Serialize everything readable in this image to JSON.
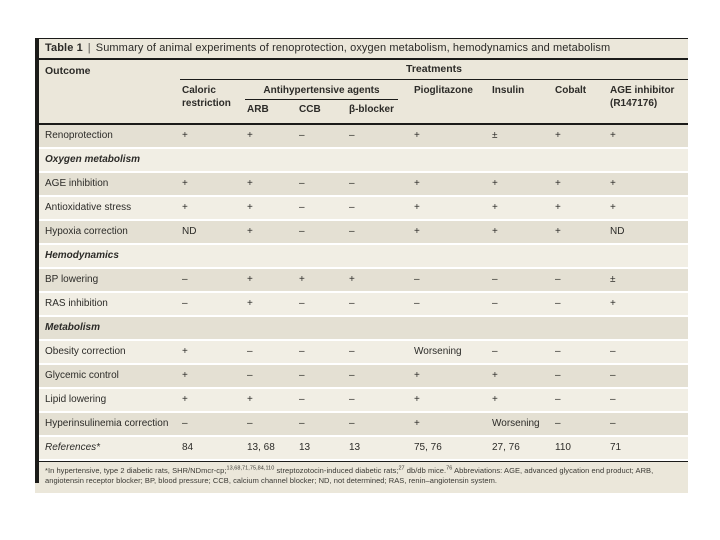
{
  "colors": {
    "band_bg": "#ebe7da",
    "row_dark": "#e4e0d3",
    "row_light": "#f1eee4",
    "rule": "#1b1b19"
  },
  "table": {
    "title_bold": "Table 1",
    "title_sep": "|",
    "title_rest": "Summary of animal experiments of renoprotection, oxygen metabolism, hemodynamics and metabolism",
    "header": {
      "outcome": "Outcome",
      "treatments": "Treatments",
      "antihypertensive_group": "Antihypertensive agents",
      "columns": [
        "Caloric restriction",
        "ARB",
        "CCB",
        "β-blocker",
        "Pioglitazone",
        "Insulin",
        "Cobalt",
        "AGE inhibitor (R147176)"
      ]
    },
    "rows": [
      {
        "type": "data",
        "label": "Renoprotection",
        "cells": [
          "+",
          "+",
          "–",
          "–",
          "+",
          "±",
          "+",
          "+"
        ]
      },
      {
        "type": "section",
        "label": "Oxygen metabolism"
      },
      {
        "type": "data",
        "label": "AGE inhibition",
        "cells": [
          "+",
          "+",
          "–",
          "–",
          "+",
          "+",
          "+",
          "+"
        ]
      },
      {
        "type": "data",
        "label": "Antioxidative stress",
        "cells": [
          "+",
          "+",
          "–",
          "–",
          "+",
          "+",
          "+",
          "+"
        ]
      },
      {
        "type": "data",
        "label": "Hypoxia correction",
        "cells": [
          "ND",
          "+",
          "–",
          "–",
          "+",
          "+",
          "+",
          "ND"
        ]
      },
      {
        "type": "section",
        "label": "Hemodynamics"
      },
      {
        "type": "data",
        "label": "BP lowering",
        "cells": [
          "–",
          "+",
          "+",
          "+",
          "–",
          "–",
          "–",
          "±"
        ]
      },
      {
        "type": "data",
        "label": "RAS inhibition",
        "cells": [
          "–",
          "+",
          "–",
          "–",
          "–",
          "–",
          "–",
          "+"
        ]
      },
      {
        "type": "section",
        "label": "Metabolism"
      },
      {
        "type": "data",
        "label": "Obesity correction",
        "cells": [
          "+",
          "–",
          "–",
          "–",
          "Worsening",
          "–",
          "–",
          "–"
        ]
      },
      {
        "type": "data",
        "label": "Glycemic control",
        "cells": [
          "+",
          "–",
          "–",
          "–",
          "+",
          "+",
          "–",
          "–"
        ]
      },
      {
        "type": "data",
        "label": "Lipid lowering",
        "cells": [
          "+",
          "+",
          "–",
          "–",
          "+",
          "+",
          "–",
          "–"
        ]
      },
      {
        "type": "data",
        "label": "Hyperinsulinemia correction",
        "cells": [
          "–",
          "–",
          "–",
          "–",
          "+",
          "Worsening",
          "–",
          "–"
        ]
      },
      {
        "type": "references",
        "label": "References*",
        "cells": [
          "84",
          "13, 68",
          "13",
          "13",
          "75, 76",
          "27, 76",
          "110",
          "71"
        ]
      }
    ],
    "footnote_segments": [
      {
        "text": "*In hypertensive, type 2 diabetic rats, SHR/NDmcr-cp;"
      },
      {
        "sup": "13,68,71,75,84,110"
      },
      {
        "text": " streptozotocin-induced diabetic rats;"
      },
      {
        "sup": "27"
      },
      {
        "text": " db/db mice."
      },
      {
        "sup": "76"
      },
      {
        "text": " Abbreviations: AGE, advanced glycation end product; ARB, angiotensin receptor blocker; BP, blood pressure; CCB, calcium channel blocker; ND, not determined; RAS, renin–angiotensin system."
      }
    ]
  }
}
